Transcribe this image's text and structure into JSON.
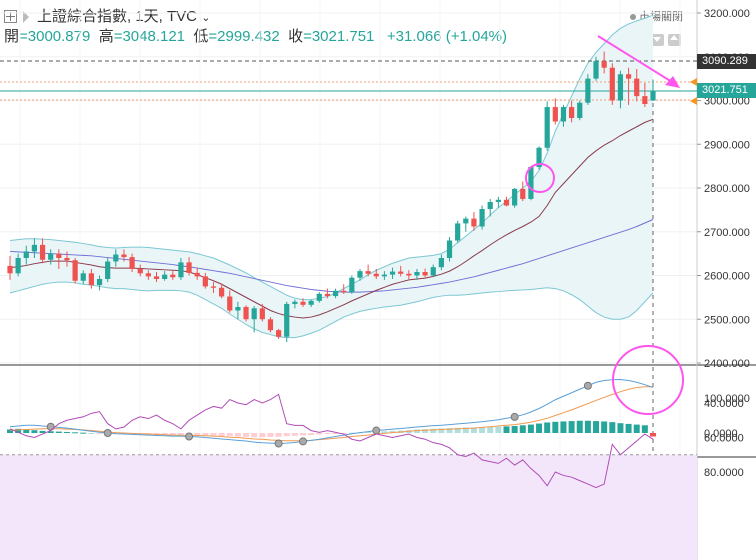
{
  "header": {
    "title": "上證綜合指數, 1天, TVC",
    "open_label": "開",
    "open": "=3000.879",
    "high_label": "高",
    "high": "=3048.121",
    "low_label": "低",
    "low": "=2999.432",
    "close_label": "收",
    "close": "=3021.751",
    "change": "+31.066 (+1.04%)",
    "market_status": "市場關閉"
  },
  "price_labels": {
    "dashed_level": "3090.289",
    "last_price": "3021.751"
  },
  "colors": {
    "up": "#26a69a",
    "down": "#ef5350",
    "bb": "#7cc7d3",
    "ma_mid": "#8b3a4a",
    "ma_long": "#6f6fd6",
    "macd_line": "#5aa0d8",
    "signal_line": "#f19a50",
    "rsi": "#b04cb7",
    "annot": "#ff55ee"
  },
  "chart_data": [
    {
      "type": "candlestick",
      "ylim": [
        2400,
        3200
      ],
      "yticks": [
        "3200.000",
        "3100.000",
        "3000.000",
        "2900.000",
        "2800.000",
        "2700.000",
        "2600.000",
        "2500.000",
        "2400.000"
      ],
      "ohlc": [
        [
          2622,
          2645,
          2590,
          2605
        ],
        [
          2605,
          2650,
          2598,
          2640
        ],
        [
          2640,
          2668,
          2625,
          2655
        ],
        [
          2655,
          2685,
          2640,
          2670
        ],
        [
          2670,
          2685,
          2628,
          2636
        ],
        [
          2636,
          2660,
          2625,
          2650
        ],
        [
          2650,
          2660,
          2615,
          2640
        ],
        [
          2640,
          2655,
          2620,
          2635
        ],
        [
          2635,
          2640,
          2582,
          2588
        ],
        [
          2588,
          2612,
          2580,
          2605
        ],
        [
          2605,
          2615,
          2570,
          2578
        ],
        [
          2578,
          2600,
          2566,
          2592
        ],
        [
          2592,
          2640,
          2585,
          2632
        ],
        [
          2632,
          2660,
          2620,
          2648
        ],
        [
          2648,
          2660,
          2632,
          2642
        ],
        [
          2642,
          2650,
          2608,
          2615
        ],
        [
          2615,
          2625,
          2598,
          2605
        ],
        [
          2605,
          2612,
          2590,
          2598
        ],
        [
          2598,
          2608,
          2585,
          2592
        ],
        [
          2592,
          2610,
          2588,
          2602
        ],
        [
          2602,
          2610,
          2590,
          2596
        ],
        [
          2596,
          2640,
          2590,
          2630
        ],
        [
          2630,
          2642,
          2600,
          2606
        ],
        [
          2606,
          2618,
          2590,
          2598
        ],
        [
          2598,
          2606,
          2570,
          2575
        ],
        [
          2575,
          2585,
          2560,
          2572
        ],
        [
          2572,
          2582,
          2548,
          2552
        ],
        [
          2552,
          2566,
          2515,
          2520
        ],
        [
          2520,
          2540,
          2500,
          2528
        ],
        [
          2528,
          2532,
          2495,
          2500
        ],
        [
          2500,
          2530,
          2470,
          2525
        ],
        [
          2525,
          2535,
          2495,
          2500
        ],
        [
          2500,
          2505,
          2470,
          2475
        ],
        [
          2475,
          2478,
          2455,
          2460
        ],
        [
          2460,
          2540,
          2448,
          2535
        ],
        [
          2535,
          2545,
          2525,
          2540
        ],
        [
          2540,
          2548,
          2528,
          2533
        ],
        [
          2533,
          2545,
          2528,
          2542
        ],
        [
          2542,
          2562,
          2538,
          2558
        ],
        [
          2558,
          2570,
          2548,
          2553
        ],
        [
          2553,
          2570,
          2548,
          2565
        ],
        [
          2565,
          2580,
          2558,
          2562
        ],
        [
          2562,
          2600,
          2558,
          2595
        ],
        [
          2595,
          2615,
          2588,
          2610
        ],
        [
          2610,
          2625,
          2598,
          2604
        ],
        [
          2604,
          2615,
          2592,
          2598
        ],
        [
          2598,
          2610,
          2590,
          2602
        ],
        [
          2602,
          2618,
          2592,
          2609
        ],
        [
          2609,
          2622,
          2598,
          2604
        ],
        [
          2604,
          2612,
          2592,
          2600
        ],
        [
          2600,
          2615,
          2590,
          2608
        ],
        [
          2608,
          2616,
          2596,
          2600
        ],
        [
          2600,
          2625,
          2596,
          2619
        ],
        [
          2619,
          2648,
          2612,
          2640
        ],
        [
          2640,
          2688,
          2632,
          2680
        ],
        [
          2680,
          2725,
          2675,
          2719
        ],
        [
          2719,
          2735,
          2700,
          2730
        ],
        [
          2730,
          2745,
          2702,
          2712
        ],
        [
          2712,
          2760,
          2705,
          2752
        ],
        [
          2752,
          2775,
          2735,
          2768
        ],
        [
          2768,
          2780,
          2755,
          2773
        ],
        [
          2773,
          2780,
          2758,
          2760
        ],
        [
          2760,
          2800,
          2755,
          2798
        ],
        [
          2798,
          2815,
          2770,
          2775
        ],
        [
          2775,
          2850,
          2772,
          2848
        ],
        [
          2848,
          2895,
          2842,
          2892
        ],
        [
          2892,
          2998,
          2885,
          2985
        ],
        [
          2985,
          3005,
          2945,
          2952
        ],
        [
          2952,
          2990,
          2940,
          2985
        ],
        [
          2985,
          3000,
          2950,
          2960
        ],
        [
          2960,
          3000,
          2955,
          2995
        ],
        [
          2995,
          3060,
          2990,
          3050
        ],
        [
          3050,
          3100,
          3045,
          3090
        ],
        [
          3090,
          3112,
          3062,
          3075
        ],
        [
          3075,
          3085,
          2990,
          3000
        ],
        [
          3000,
          3068,
          2982,
          3060
        ],
        [
          3060,
          3075,
          2990,
          3050
        ],
        [
          3050,
          3072,
          2998,
          3010
        ],
        [
          3010,
          3040,
          2985,
          2992
        ],
        [
          3000,
          3048,
          2999,
          3021
        ]
      ],
      "bb_upper": [
        2680,
        2682,
        2684,
        2684,
        2683,
        2682,
        2680,
        2678,
        2676,
        2673,
        2670,
        2666,
        2664,
        2663,
        2664,
        2665,
        2665,
        2664,
        2662,
        2660,
        2658,
        2656,
        2654,
        2650,
        2645,
        2640,
        2632,
        2624,
        2615,
        2606,
        2595,
        2585,
        2575,
        2565,
        2555,
        2548,
        2545,
        2545,
        2548,
        2552,
        2560,
        2570,
        2580,
        2590,
        2602,
        2612,
        2620,
        2628,
        2634,
        2640,
        2642,
        2644,
        2646,
        2650,
        2660,
        2675,
        2690,
        2705,
        2720,
        2738,
        2755,
        2770,
        2785,
        2800,
        2815,
        2840,
        2880,
        2930,
        2970,
        3010,
        3050,
        3085,
        3110,
        3130,
        3150,
        3165,
        3175,
        3182,
        3188,
        3195
      ],
      "bb_lower": [
        2560,
        2565,
        2570,
        2575,
        2580,
        2583,
        2585,
        2585,
        2583,
        2580,
        2578,
        2575,
        2572,
        2570,
        2570,
        2568,
        2566,
        2565,
        2566,
        2566,
        2566,
        2565,
        2562,
        2555,
        2545,
        2535,
        2525,
        2512,
        2500,
        2488,
        2478,
        2470,
        2465,
        2460,
        2458,
        2458,
        2462,
        2468,
        2475,
        2485,
        2495,
        2505,
        2512,
        2518,
        2522,
        2525,
        2528,
        2530,
        2532,
        2536,
        2540,
        2545,
        2550,
        2553,
        2555,
        2555,
        2556,
        2558,
        2560,
        2562,
        2563,
        2565,
        2566,
        2567,
        2568,
        2570,
        2572,
        2570,
        2565,
        2556,
        2545,
        2530,
        2515,
        2505,
        2500,
        2500,
        2505,
        2520,
        2540,
        2560
      ],
      "ma_mid": [
        2618,
        2620,
        2623,
        2627,
        2630,
        2633,
        2633,
        2633,
        2630,
        2627,
        2624,
        2620,
        2618,
        2617,
        2617,
        2617,
        2616,
        2615,
        2614,
        2613,
        2612,
        2611,
        2608,
        2602,
        2595,
        2588,
        2580,
        2570,
        2560,
        2550,
        2540,
        2530,
        2520,
        2513,
        2508,
        2505,
        2503,
        2505,
        2510,
        2517,
        2525,
        2533,
        2542,
        2550,
        2558,
        2566,
        2573,
        2580,
        2585,
        2590,
        2592,
        2594,
        2598,
        2603,
        2610,
        2620,
        2632,
        2645,
        2657,
        2670,
        2682,
        2693,
        2703,
        2712,
        2722,
        2735,
        2760,
        2790,
        2810,
        2830,
        2850,
        2870,
        2885,
        2898,
        2908,
        2920,
        2930,
        2940,
        2950,
        2957
      ],
      "ma_long": [
        2655,
        2654,
        2653,
        2652,
        2651,
        2650,
        2649,
        2648,
        2647,
        2646,
        2645,
        2643,
        2641,
        2639,
        2637,
        2635,
        2633,
        2631,
        2629,
        2627,
        2625,
        2622,
        2620,
        2617,
        2614,
        2611,
        2608,
        2605,
        2601,
        2597,
        2593,
        2589,
        2585,
        2581,
        2577,
        2574,
        2571,
        2568,
        2566,
        2564,
        2563,
        2562,
        2562,
        2562,
        2563,
        2564,
        2565,
        2567,
        2569,
        2571,
        2573,
        2576,
        2579,
        2582,
        2585,
        2589,
        2593,
        2597,
        2602,
        2607,
        2612,
        2617,
        2622,
        2627,
        2633,
        2639,
        2645,
        2651,
        2657,
        2663,
        2669,
        2675,
        2681,
        2687,
        2693,
        2699,
        2705,
        2712,
        2720,
        2728
      ]
    },
    {
      "type": "macd",
      "ylim": [
        -40,
        190
      ],
      "yticks": [
        "100.0000",
        "0.0000"
      ],
      "hist": [
        10,
        12,
        10,
        8,
        6,
        5,
        4,
        3,
        2,
        1,
        0,
        -1,
        -2,
        -2,
        -2,
        -3,
        -4,
        -4,
        -5,
        -5,
        -6,
        -5,
        -5,
        -6,
        -7,
        -8,
        -9,
        -9,
        -10,
        -11,
        -12,
        -12,
        -11,
        -11,
        -9,
        -8,
        -7,
        -6,
        -4,
        -3,
        -2,
        -1,
        1,
        2,
        3,
        4,
        5,
        6,
        7,
        8,
        10,
        11,
        12,
        13,
        14,
        15,
        16,
        16,
        17,
        18,
        18,
        19,
        20,
        22,
        24,
        27,
        30,
        32,
        33,
        34,
        35,
        35,
        34,
        33,
        31,
        28,
        26,
        24,
        22,
        -10
      ],
      "macd_line": [
        18,
        20,
        22,
        22,
        20,
        18,
        16,
        14,
        11,
        8,
        5,
        2,
        0,
        -2,
        -3,
        -4,
        -5,
        -6,
        -7,
        -8,
        -9,
        -9,
        -10,
        -11,
        -13,
        -15,
        -17,
        -19,
        -21,
        -23,
        -26,
        -28,
        -29,
        -30,
        -29,
        -27,
        -24,
        -21,
        -18,
        -14,
        -10,
        -6,
        -2,
        1,
        4,
        7,
        9,
        11,
        13,
        15,
        17,
        19,
        21,
        22,
        24,
        26,
        28,
        30,
        32,
        35,
        38,
        42,
        46,
        52,
        60,
        70,
        82,
        95,
        105,
        115,
        125,
        135,
        145,
        150,
        152,
        153,
        150,
        145,
        138,
        130
      ],
      "signal_line": [
        8,
        9,
        10,
        11,
        12,
        12,
        12,
        11,
        10,
        9,
        7,
        5,
        3,
        1,
        0,
        -1,
        -2,
        -3,
        -4,
        -5,
        -6,
        -6,
        -7,
        -7,
        -8,
        -9,
        -10,
        -12,
        -13,
        -15,
        -17,
        -18,
        -20,
        -21,
        -22,
        -22,
        -22,
        -21,
        -19,
        -17,
        -15,
        -13,
        -10,
        -8,
        -6,
        -3,
        -1,
        1,
        3,
        5,
        7,
        8,
        9,
        10,
        11,
        12,
        13,
        14,
        16,
        18,
        20,
        22,
        24,
        27,
        31,
        36,
        42,
        50,
        58,
        66,
        75,
        84,
        93,
        102,
        110,
        118,
        125,
        130,
        132,
        132
      ]
    },
    {
      "type": "rsi",
      "ylim": [
        30,
        100
      ],
      "yticks": [
        "80.0000",
        "60.0000",
        "40.0000"
      ],
      "band": [
        30,
        70
      ],
      "values": [
        55,
        57,
        59,
        60,
        58,
        56,
        52,
        50,
        49,
        48,
        46,
        45,
        52,
        55,
        54,
        50,
        48,
        49,
        47,
        50,
        52,
        55,
        50,
        47,
        44,
        42,
        43,
        38,
        40,
        41,
        38,
        40,
        38,
        35,
        52,
        53,
        53,
        56,
        57,
        56,
        57,
        58,
        61,
        62,
        60,
        58,
        59,
        60,
        59,
        58,
        60,
        61,
        63,
        64,
        66,
        70,
        71,
        69,
        73,
        74,
        75,
        72,
        76,
        73,
        78,
        82,
        88,
        80,
        82,
        83,
        85,
        87,
        89,
        87,
        64,
        70,
        66,
        62,
        58,
        61
      ]
    }
  ]
}
